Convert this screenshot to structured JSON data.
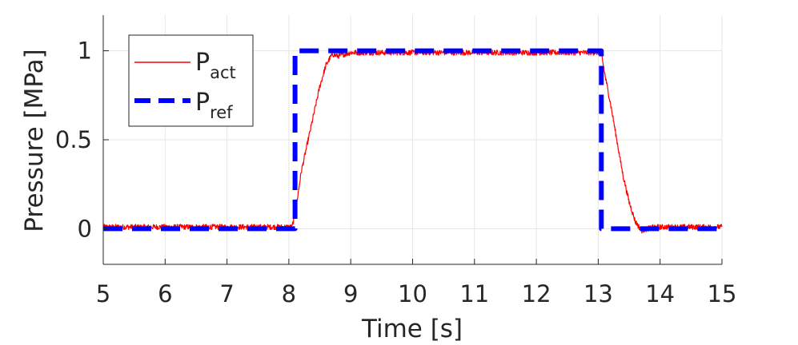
{
  "chart_data": {
    "type": "line",
    "title": "",
    "xlabel": "Time [s]",
    "ylabel": "Pressure [MPa]",
    "xlim": [
      5,
      15
    ],
    "ylim": [
      -0.2,
      1.2
    ],
    "xticks": [
      5,
      6,
      7,
      8,
      9,
      10,
      11,
      12,
      13,
      14,
      15
    ],
    "yticks": [
      0,
      0.5,
      1
    ],
    "ytick_labels": [
      "0",
      "0.5",
      "1"
    ],
    "grid": true,
    "legend_position": "top-left",
    "series": [
      {
        "name": "P",
        "subscript": "act",
        "color": "#ff0000",
        "style": "solid",
        "noise_amplitude": 0.015,
        "x": [
          5,
          8.05,
          8.1,
          8.2,
          8.3,
          8.4,
          8.5,
          8.6,
          8.7,
          8.8,
          8.9,
          9.0,
          13.05,
          13.1,
          13.2,
          13.3,
          13.4,
          13.5,
          13.6,
          13.7,
          13.8,
          13.9,
          14.0,
          15
        ],
        "y": [
          0.01,
          0.01,
          0.08,
          0.32,
          0.48,
          0.64,
          0.8,
          0.92,
          0.98,
          0.97,
          0.98,
          0.99,
          0.99,
          0.88,
          0.7,
          0.5,
          0.3,
          0.15,
          0.04,
          -0.01,
          0.0,
          0.01,
          0.01,
          0.01
        ]
      },
      {
        "name": "P",
        "subscript": "ref",
        "color": "#0000ff",
        "style": "dashed",
        "x": [
          5,
          8.1,
          8.1,
          13.05,
          13.05,
          15
        ],
        "y": [
          0,
          0,
          1,
          1,
          0,
          0
        ]
      }
    ]
  }
}
